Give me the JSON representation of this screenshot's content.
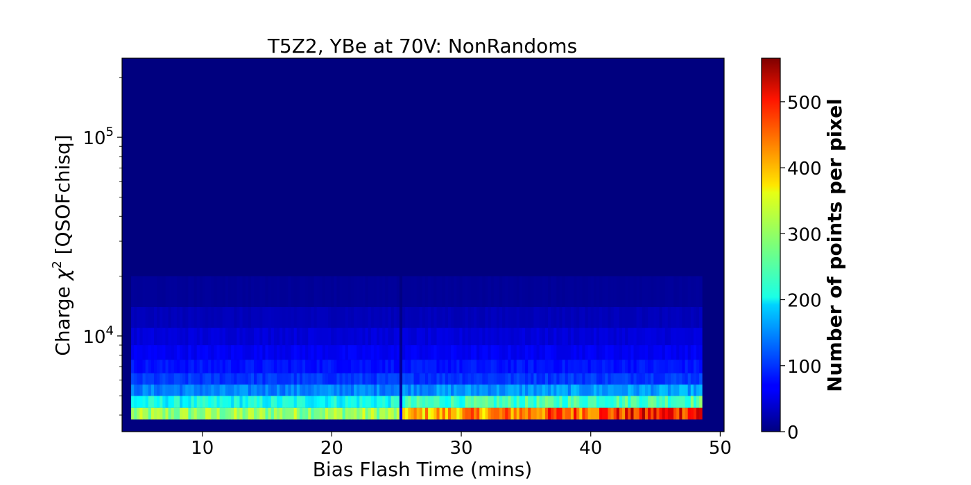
{
  "chart_data": {
    "type": "heatmap",
    "title": "T5Z2, YBe at 70V: NonRandoms",
    "xlabel": "Bias Flash Time (mins)",
    "ylabel_prefix": "Charge ",
    "ylabel_symbol": "χ",
    "ylabel_exponent": "2",
    "ylabel_suffix": " [QSOFchisq]",
    "xlim": [
      3.8,
      50.3
    ],
    "ylim": [
      3300,
      250000
    ],
    "yscale": "log",
    "x_ticks": [
      {
        "value": 10,
        "label": "10"
      },
      {
        "value": 20,
        "label": "20"
      },
      {
        "value": 30,
        "label": "30"
      },
      {
        "value": 40,
        "label": "40"
      },
      {
        "value": 50,
        "label": "50"
      }
    ],
    "y_ticks": [
      {
        "value": 10000,
        "base": "10",
        "exp": "4"
      },
      {
        "value": 100000,
        "base": "10",
        "exp": "5"
      }
    ],
    "grid": false,
    "colormap": "jet",
    "colorbar": {
      "label": "Number of points per pixel",
      "range": [
        0,
        566
      ],
      "ticks": [
        {
          "value": 0,
          "label": "0"
        },
        {
          "value": 100,
          "label": "100"
        },
        {
          "value": 200,
          "label": "200"
        },
        {
          "value": 300,
          "label": "300"
        },
        {
          "value": 400,
          "label": "400"
        },
        {
          "value": 500,
          "label": "500"
        }
      ]
    },
    "data_extent_x": [
      4.5,
      48.6
    ],
    "gap_x": 25.3,
    "bands": [
      {
        "y_range": [
          3800,
          4350
        ],
        "counts_start": 290,
        "counts_mid": 300,
        "counts_gap_after": 380,
        "counts_end": 500
      },
      {
        "y_range": [
          4350,
          5000
        ],
        "counts_start": 215,
        "counts_mid": 220,
        "counts_gap_after": 240,
        "counts_end": 260
      },
      {
        "y_range": [
          5000,
          5700
        ],
        "counts_start": 140,
        "counts_mid": 145,
        "counts_gap_after": 150,
        "counts_end": 160
      },
      {
        "y_range": [
          5700,
          6500
        ],
        "counts_start": 100,
        "counts_mid": 100,
        "counts_gap_after": 100,
        "counts_end": 105
      },
      {
        "y_range": [
          6500,
          7600
        ],
        "counts_start": 80,
        "counts_mid": 80,
        "counts_gap_after": 80,
        "counts_end": 82
      },
      {
        "y_range": [
          7600,
          9000
        ],
        "counts_start": 65,
        "counts_mid": 65,
        "counts_gap_after": 65,
        "counts_end": 65
      },
      {
        "y_range": [
          9000,
          11000
        ],
        "counts_start": 50,
        "counts_mid": 50,
        "counts_gap_after": 50,
        "counts_end": 50
      },
      {
        "y_range": [
          11000,
          14000
        ],
        "counts_start": 32,
        "counts_mid": 32,
        "counts_gap_after": 32,
        "counts_end": 32
      },
      {
        "y_range": [
          14000,
          20000
        ],
        "counts_start": 14,
        "counts_mid": 14,
        "counts_gap_after": 14,
        "counts_end": 14
      }
    ]
  }
}
